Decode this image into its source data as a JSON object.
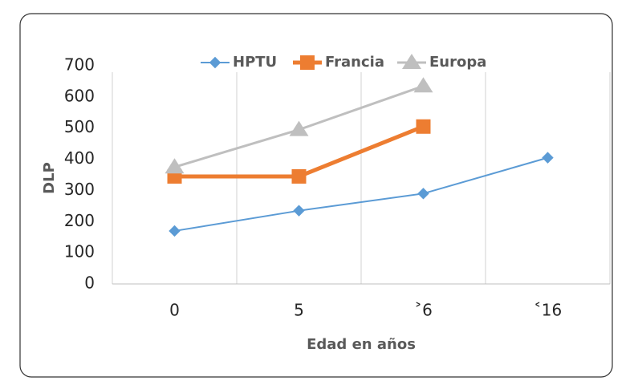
{
  "chart_data": {
    "type": "line",
    "categories": [
      "0",
      "5",
      "˃6",
      "˂16"
    ],
    "x_label": "Edad en años",
    "y_label": "DLP",
    "series": [
      {
        "name": "HPTU",
        "color": "#5b9bd5",
        "marker": "diamond",
        "values": [
          170,
          235,
          290,
          405
        ]
      },
      {
        "name": "Francia",
        "color": "#ed7d31",
        "marker": "square",
        "values": [
          345,
          345,
          505,
          null
        ]
      },
      {
        "name": "Europa",
        "color": "#bfbfbf",
        "marker": "triangle",
        "values": [
          375,
          495,
          635,
          null
        ]
      }
    ],
    "ylim": [
      0,
      700
    ],
    "yticks": [
      0,
      100,
      200,
      300,
      400,
      500,
      600,
      700
    ],
    "grid": true,
    "legend": "top"
  }
}
